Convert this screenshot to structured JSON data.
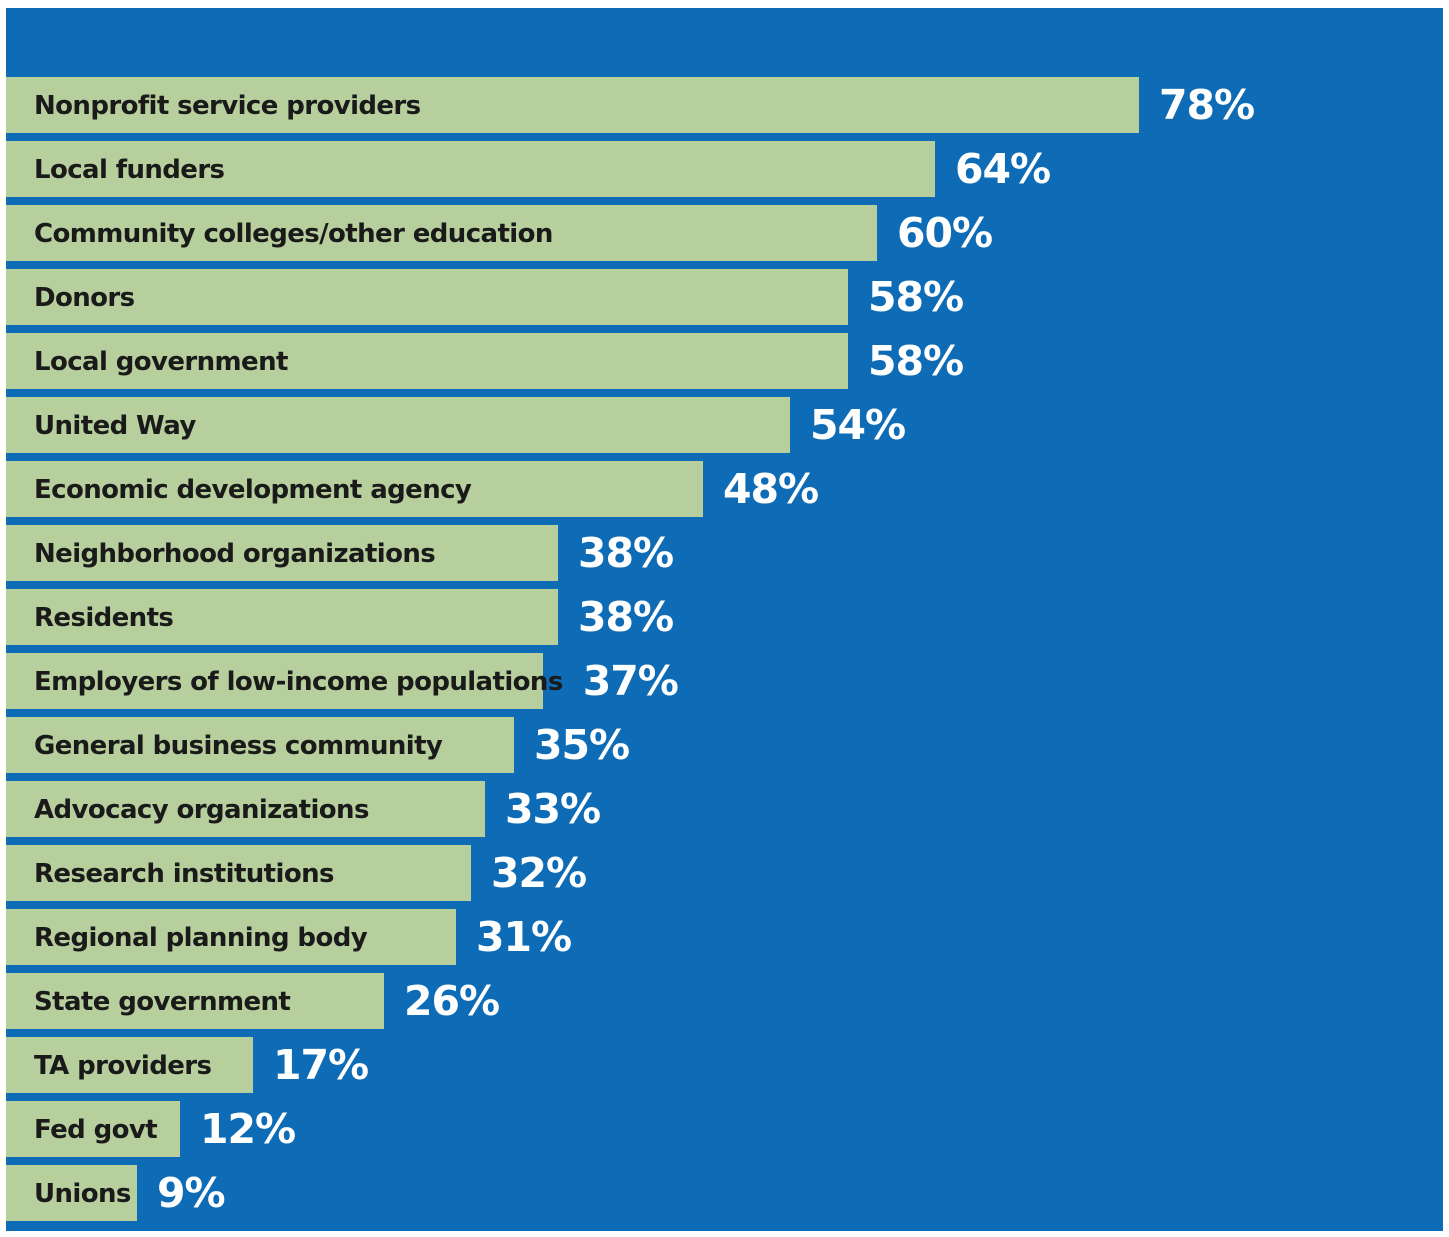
{
  "chart_data": {
    "type": "bar",
    "orientation": "horizontal",
    "categories": [
      "Nonprofit service providers",
      "Local funders",
      "Community colleges/other education",
      "Donors",
      "Local government",
      "United Way",
      "Economic development agency",
      "Neighborhood organizations",
      "Residents",
      "Employers of low-income populations",
      "General business community",
      "Advocacy organizations",
      "Research institutions",
      "Regional planning body",
      "State government",
      "TA providers",
      "Fed govt",
      "Unions"
    ],
    "values": [
      78,
      64,
      60,
      58,
      58,
      54,
      48,
      38,
      38,
      37,
      35,
      33,
      32,
      31,
      26,
      17,
      12,
      9
    ],
    "value_labels": [
      "78%",
      "64%",
      "60%",
      "58%",
      "58%",
      "54%",
      "48%",
      "38%",
      "38%",
      "37%",
      "35%",
      "33%",
      "32%",
      "31%",
      "26%",
      "17%",
      "12%",
      "9%"
    ],
    "unit": "%",
    "colors": {
      "background": "#0e6bb5",
      "bar": "#b6cf9c",
      "label_text": "#1a1a1a",
      "value_text": "#ffffff"
    }
  }
}
